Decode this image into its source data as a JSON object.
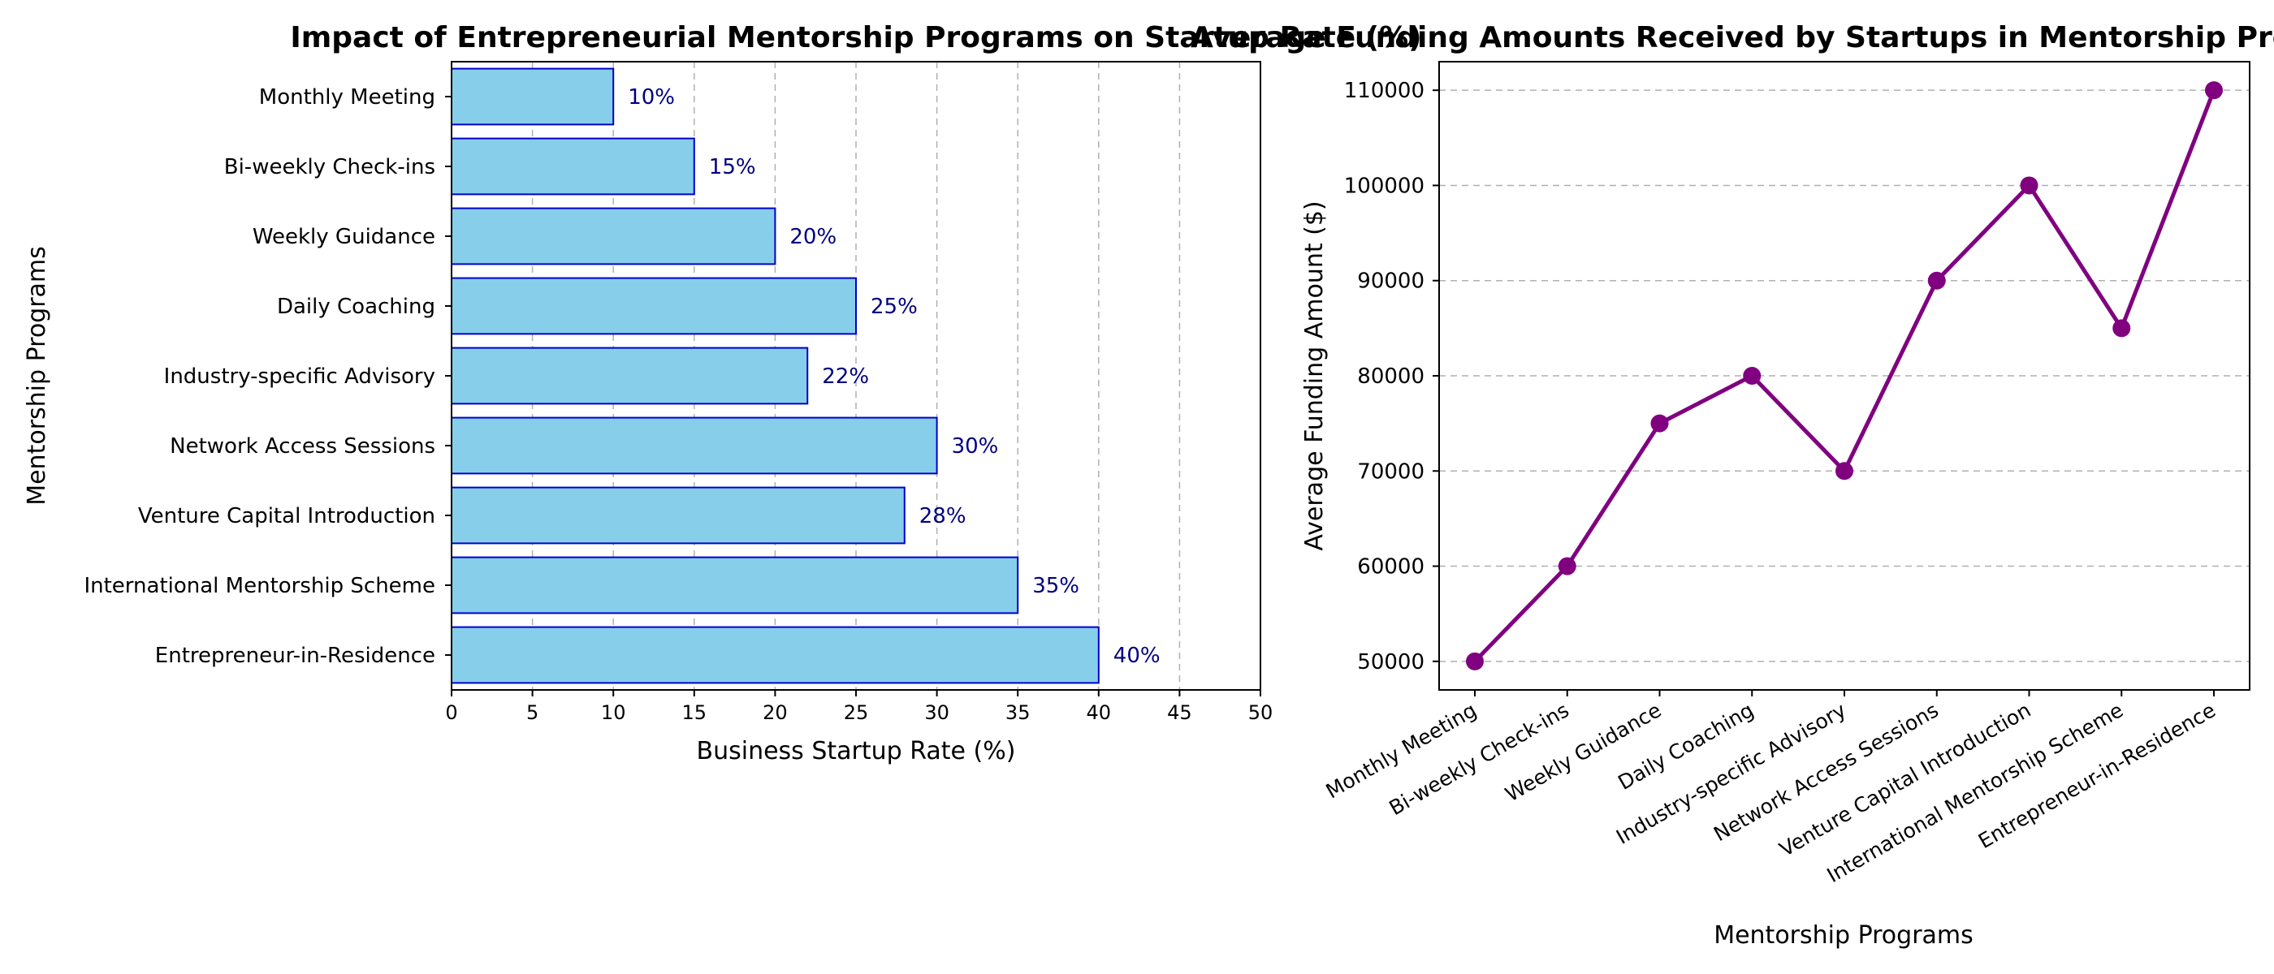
{
  "chart_data": [
    {
      "type": "bar",
      "orientation": "horizontal",
      "title": "Impact of Entrepreneurial Mentorship Programs on Startup Rate (%)",
      "xlabel": "Business Startup Rate (%)",
      "ylabel": "Mentorship Programs",
      "categories": [
        "Monthly Meeting",
        "Bi-weekly Check-ins",
        "Weekly Guidance",
        "Daily Coaching",
        "Industry-specific Advisory",
        "Network Access Sessions",
        "Venture Capital Introduction",
        "International Mentorship Scheme",
        "Entrepreneur-in-Residence"
      ],
      "values": [
        10,
        15,
        20,
        25,
        22,
        30,
        28,
        35,
        40
      ],
      "data_labels": [
        "10%",
        "15%",
        "20%",
        "25%",
        "22%",
        "30%",
        "28%",
        "35%",
        "40%"
      ],
      "xlim": [
        0,
        50
      ],
      "xticks": [
        "0",
        "5",
        "10",
        "15",
        "20",
        "25",
        "30",
        "35",
        "40",
        "45",
        "50"
      ],
      "grid": "vertical dashed",
      "colors": {
        "bar_fill": "#87ceeb",
        "bar_edge": "#0000cd",
        "label": "#000080"
      }
    },
    {
      "type": "line",
      "title": "Average Funding Amounts Received by Startups in Mentorship Programs",
      "xlabel": "Mentorship Programs",
      "ylabel": "Average Funding Amount ($)",
      "categories": [
        "Monthly Meeting",
        "Bi-weekly Check-ins",
        "Weekly Guidance",
        "Daily Coaching",
        "Industry-specific Advisory",
        "Network Access Sessions",
        "Venture Capital Introduction",
        "International Mentorship Scheme",
        "Entrepreneur-in-Residence"
      ],
      "values": [
        50000,
        60000,
        75000,
        80000,
        70000,
        90000,
        100000,
        85000,
        110000
      ],
      "ylim": [
        47000,
        113000
      ],
      "yticks": [
        "50000",
        "60000",
        "70000",
        "80000",
        "90000",
        "100000",
        "110000"
      ],
      "grid": "horizontal dashed",
      "colors": {
        "line": "#800080",
        "marker": "#800080"
      }
    }
  ]
}
